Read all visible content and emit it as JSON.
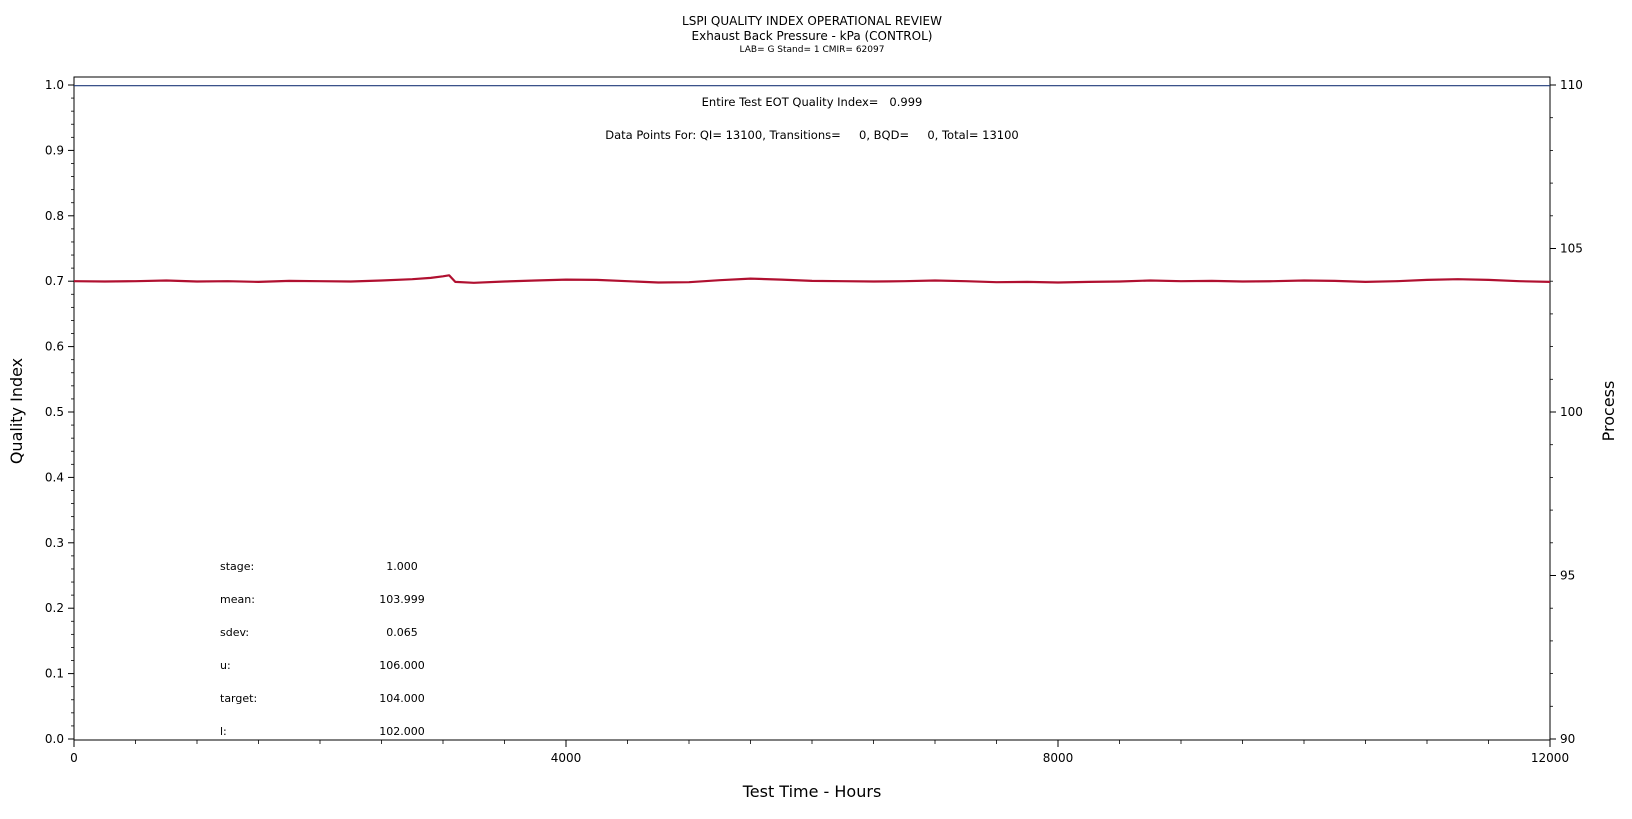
{
  "chart_data": {
    "type": "line",
    "title": "LSPI QUALITY INDEX OPERATIONAL REVIEW",
    "subtitle": "Exhaust Back Pressure - kPa (CONTROL)",
    "meta_line": "LAB= G Stand= 1 CMIR= 62097",
    "xlabel": "Test Time - Hours",
    "ylabel": "Quality Index",
    "y2label": "Process",
    "xlim": [
      0,
      12000
    ],
    "ylim": [
      0,
      1.0
    ],
    "y2lim": [
      90,
      110
    ],
    "x_ticks": [
      "0",
      "4000",
      "8000",
      "12000"
    ],
    "y_ticks": [
      "0.0",
      "0.1",
      "0.2",
      "0.3",
      "0.4",
      "0.5",
      "0.6",
      "0.7",
      "0.8",
      "0.9",
      "1.0"
    ],
    "y2_ticks": [
      "90",
      "95",
      "100",
      "105",
      "110"
    ],
    "annotations": {
      "quality_index": "Entire Test EOT Quality Index=   0.999",
      "data_points": "Data Points For: QI= 13100, Transitions=     0, BQD=     0, Total= 13100"
    },
    "stats": [
      {
        "label": "stage:",
        "value": "1.000"
      },
      {
        "label": "mean:",
        "value": "103.999"
      },
      {
        "label": "sdev:",
        "value": "0.065"
      },
      {
        "label": "u:",
        "value": "106.000"
      },
      {
        "label": "target:",
        "value": "104.000"
      },
      {
        "label": "l:",
        "value": "102.000"
      }
    ],
    "series": [
      {
        "axis": "quality_index",
        "color": "#1f3a7a",
        "x": [
          0,
          12000
        ],
        "y": [
          0.999,
          0.999
        ]
      },
      {
        "axis": "process",
        "color": "#b01030",
        "x": [
          0,
          250,
          500,
          750,
          1000,
          1250,
          1500,
          1750,
          2000,
          2250,
          2500,
          2750,
          2900,
          3000,
          3050,
          3100,
          3250,
          3500,
          3750,
          4000,
          4250,
          4500,
          4750,
          5000,
          5250,
          5500,
          5750,
          6000,
          6250,
          6500,
          6750,
          7000,
          7250,
          7500,
          7750,
          8000,
          8250,
          8500,
          8750,
          9000,
          9250,
          9500,
          9750,
          10000,
          10250,
          10500,
          10750,
          11000,
          11250,
          11500,
          11750,
          12000
        ],
        "y": [
          104.0,
          103.99,
          104.0,
          104.02,
          103.99,
          104.0,
          103.98,
          104.01,
          104.0,
          103.99,
          104.02,
          104.06,
          104.1,
          104.15,
          104.18,
          103.98,
          103.95,
          103.99,
          104.02,
          104.05,
          104.04,
          104.0,
          103.96,
          103.97,
          104.03,
          104.08,
          104.05,
          104.01,
          104.0,
          103.99,
          104.0,
          104.02,
          104.0,
          103.97,
          103.98,
          103.96,
          103.98,
          103.99,
          104.02,
          104.0,
          104.01,
          103.99,
          104.0,
          104.02,
          104.01,
          103.98,
          104.0,
          104.04,
          104.06,
          104.04,
          104.0,
          103.98
        ]
      }
    ]
  }
}
